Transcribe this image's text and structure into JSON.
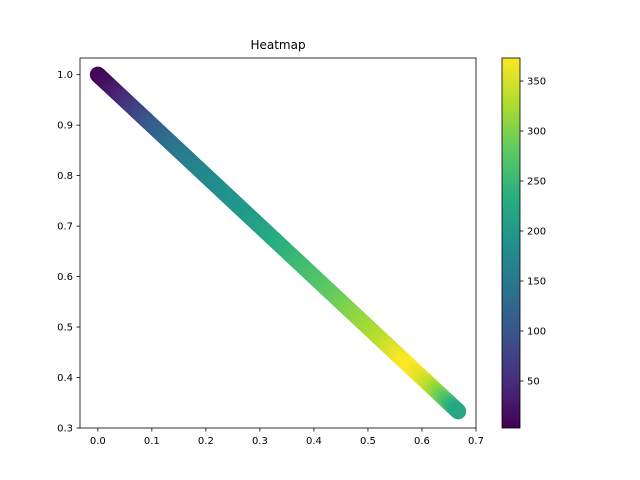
{
  "chart_data": {
    "type": "scatter",
    "title": "Heatmap",
    "xlabel": "",
    "ylabel": "",
    "xlim": [
      -0.033,
      0.7
    ],
    "ylim": [
      0.3,
      1.033
    ],
    "x_ticks": [
      0.0,
      0.1,
      0.2,
      0.3,
      0.4,
      0.5,
      0.6,
      0.7
    ],
    "x_tick_labels": [
      "0.0",
      "0.1",
      "0.2",
      "0.3",
      "0.4",
      "0.5",
      "0.6",
      "0.7"
    ],
    "y_ticks": [
      0.3,
      0.4,
      0.5,
      0.6,
      0.7,
      0.8,
      0.9,
      1.0
    ],
    "y_tick_labels": [
      "0.3",
      "0.4",
      "0.5",
      "0.6",
      "0.7",
      "0.8",
      "0.9",
      "1.0"
    ],
    "grid": false,
    "colormap": "viridis",
    "colorbar": {
      "range": [
        3,
        373
      ],
      "ticks": [
        50,
        100,
        150,
        200,
        250,
        300,
        350
      ],
      "tick_labels": [
        "50",
        "100",
        "150",
        "200",
        "250",
        "300",
        "350"
      ]
    },
    "points": [
      {
        "x": 0.0,
        "y": 1.0,
        "c": 4
      },
      {
        "x": 0.01,
        "y": 0.99,
        "c": 12
      },
      {
        "x": 0.025,
        "y": 0.975,
        "c": 22
      },
      {
        "x": 0.05,
        "y": 0.95,
        "c": 48
      },
      {
        "x": 0.075,
        "y": 0.925,
        "c": 75
      },
      {
        "x": 0.1,
        "y": 0.9,
        "c": 105
      },
      {
        "x": 0.125,
        "y": 0.875,
        "c": 128
      },
      {
        "x": 0.15,
        "y": 0.85,
        "c": 148
      },
      {
        "x": 0.175,
        "y": 0.825,
        "c": 160
      },
      {
        "x": 0.2,
        "y": 0.8,
        "c": 172
      },
      {
        "x": 0.225,
        "y": 0.775,
        "c": 182
      },
      {
        "x": 0.25,
        "y": 0.75,
        "c": 192
      },
      {
        "x": 0.275,
        "y": 0.725,
        "c": 200
      },
      {
        "x": 0.3,
        "y": 0.7,
        "c": 212
      },
      {
        "x": 0.325,
        "y": 0.675,
        "c": 226
      },
      {
        "x": 0.35,
        "y": 0.65,
        "c": 240
      },
      {
        "x": 0.375,
        "y": 0.625,
        "c": 252
      },
      {
        "x": 0.4,
        "y": 0.6,
        "c": 264
      },
      {
        "x": 0.425,
        "y": 0.575,
        "c": 276
      },
      {
        "x": 0.45,
        "y": 0.55,
        "c": 290
      },
      {
        "x": 0.475,
        "y": 0.525,
        "c": 305
      },
      {
        "x": 0.5,
        "y": 0.5,
        "c": 318
      },
      {
        "x": 0.525,
        "y": 0.475,
        "c": 333
      },
      {
        "x": 0.55,
        "y": 0.45,
        "c": 355
      },
      {
        "x": 0.565,
        "y": 0.435,
        "c": 370
      },
      {
        "x": 0.58,
        "y": 0.42,
        "c": 373
      },
      {
        "x": 0.6,
        "y": 0.4,
        "c": 360
      },
      {
        "x": 0.615,
        "y": 0.385,
        "c": 340
      },
      {
        "x": 0.63,
        "y": 0.37,
        "c": 310
      },
      {
        "x": 0.645,
        "y": 0.355,
        "c": 275
      },
      {
        "x": 0.655,
        "y": 0.345,
        "c": 248
      },
      {
        "x": 0.667,
        "y": 0.333,
        "c": 222
      }
    ]
  }
}
